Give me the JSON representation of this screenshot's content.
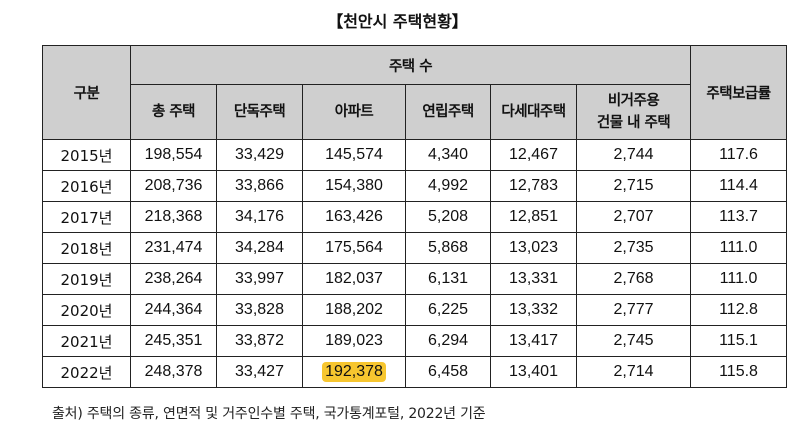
{
  "title": "【천안시 주택현황】",
  "header": {
    "division": "구분",
    "housing_count": "주택 수",
    "supply_rate": "주택보급률",
    "sub": [
      "총 주택",
      "단독주택",
      "아파트",
      "연립주택",
      "다세대주택",
      "비거주용\n건물 내 주택"
    ]
  },
  "rows": [
    {
      "year": "2015년",
      "total": "198,554",
      "detached": "33,429",
      "apartment": "145,574",
      "row_house": "4,340",
      "multi_family": "12,467",
      "non_residential": "2,744",
      "rate": "117.6"
    },
    {
      "year": "2016년",
      "total": "208,736",
      "detached": "33,866",
      "apartment": "154,380",
      "row_house": "4,992",
      "multi_family": "12,783",
      "non_residential": "2,715",
      "rate": "114.4"
    },
    {
      "year": "2017년",
      "total": "218,368",
      "detached": "34,176",
      "apartment": "163,426",
      "row_house": "5,208",
      "multi_family": "12,851",
      "non_residential": "2,707",
      "rate": "113.7"
    },
    {
      "year": "2018년",
      "total": "231,474",
      "detached": "34,284",
      "apartment": "175,564",
      "row_house": "5,868",
      "multi_family": "13,023",
      "non_residential": "2,735",
      "rate": "111.0"
    },
    {
      "year": "2019년",
      "total": "238,264",
      "detached": "33,997",
      "apartment": "182,037",
      "row_house": "6,131",
      "multi_family": "13,331",
      "non_residential": "2,768",
      "rate": "111.0"
    },
    {
      "year": "2020년",
      "total": "244,364",
      "detached": "33,828",
      "apartment": "188,202",
      "row_house": "6,225",
      "multi_family": "13,332",
      "non_residential": "2,777",
      "rate": "112.8"
    },
    {
      "year": "2021년",
      "total": "245,351",
      "detached": "33,872",
      "apartment": "189,023",
      "row_house": "6,294",
      "multi_family": "13,417",
      "non_residential": "2,745",
      "rate": "115.1"
    },
    {
      "year": "2022년",
      "total": "248,378",
      "detached": "33,427",
      "apartment": "192,378",
      "row_house": "6,458",
      "multi_family": "13,401",
      "non_residential": "2,714",
      "rate": "115.8"
    }
  ],
  "highlight_color": "#f7c62f",
  "source": "출처) 주택의 종류, 연면적 및 거주인수별 주택, 국가통계포털, 2022년 기준"
}
